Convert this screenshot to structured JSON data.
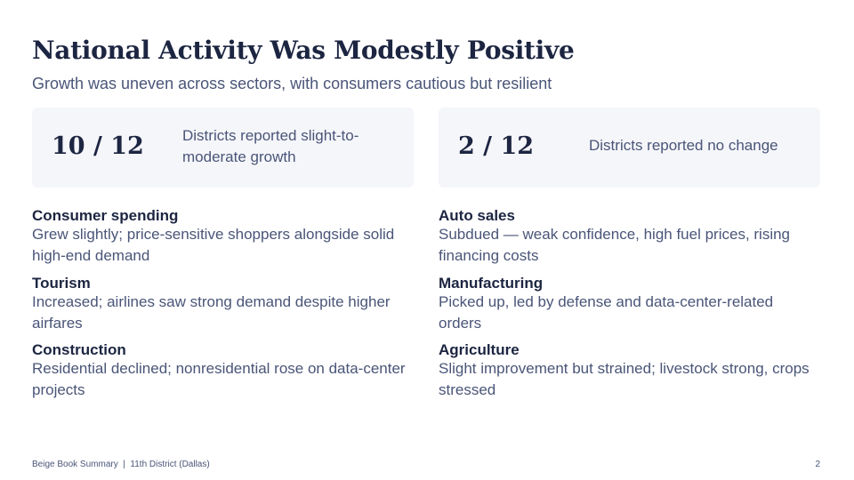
{
  "slide": {
    "title": "National Activity Was Modestly Positive",
    "subtitle": "Growth was uneven across sectors, with consumers cautious but resilient"
  },
  "stats": [
    {
      "value": "10 / 12",
      "description": "Districts reported slight-to-moderate growth"
    },
    {
      "value": "2 / 12",
      "description": "Districts reported no change"
    }
  ],
  "sectors": [
    {
      "name": "Consumer spending",
      "text": "Grew slightly; price-sensitive shoppers alongside solid high-end demand"
    },
    {
      "name": "Tourism",
      "text": "Increased; airlines saw strong demand despite higher airfares"
    },
    {
      "name": "Construction",
      "text": "Residential declined; nonresidential rose on data-center projects"
    },
    {
      "name": "Auto sales",
      "text": "Subdued — weak confidence, high fuel prices, rising financing costs"
    },
    {
      "name": "Manufacturing",
      "text": "Picked up, led by defense and data-center-related orders"
    },
    {
      "name": "Agriculture",
      "text": "Slight improvement but strained; livestock strong, crops stressed"
    }
  ],
  "footer": {
    "text": "Beige Book Summary  |  11th District (Dallas)",
    "page": "2"
  }
}
